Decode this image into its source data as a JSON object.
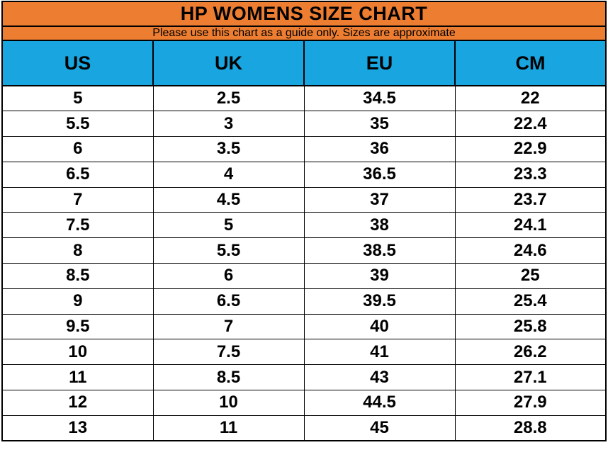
{
  "chart_data": {
    "type": "table",
    "title": "HP WOMENS SIZE CHART",
    "subtitle": "Please use this chart as a guide only. Sizes are approximate",
    "columns": [
      "US",
      "UK",
      "EU",
      "CM"
    ],
    "rows": [
      [
        "5",
        "2.5",
        "34.5",
        "22"
      ],
      [
        "5.5",
        "3",
        "35",
        "22.4"
      ],
      [
        "6",
        "3.5",
        "36",
        "22.9"
      ],
      [
        "6.5",
        "4",
        "36.5",
        "23.3"
      ],
      [
        "7",
        "4.5",
        "37",
        "23.7"
      ],
      [
        "7.5",
        "5",
        "38",
        "24.1"
      ],
      [
        "8",
        "5.5",
        "38.5",
        "24.6"
      ],
      [
        "8.5",
        "6",
        "39",
        "25"
      ],
      [
        "9",
        "6.5",
        "39.5",
        "25.4"
      ],
      [
        "9.5",
        "7",
        "40",
        "25.8"
      ],
      [
        "10",
        "7.5",
        "41",
        "26.2"
      ],
      [
        "11",
        "8.5",
        "43",
        "27.1"
      ],
      [
        "12",
        "10",
        "44.5",
        "27.9"
      ],
      [
        "13",
        "11",
        "45",
        "28.8"
      ]
    ],
    "layout": {
      "legend": "none",
      "grid": "table-borders",
      "header_rows": 3
    }
  },
  "colors": {
    "title_band": "#ED7D31",
    "subtitle_band": "#ED7D31",
    "column_header": "#18A5E0",
    "border": "#000000",
    "text": "#000000",
    "row_background": "#FFFFFF"
  }
}
